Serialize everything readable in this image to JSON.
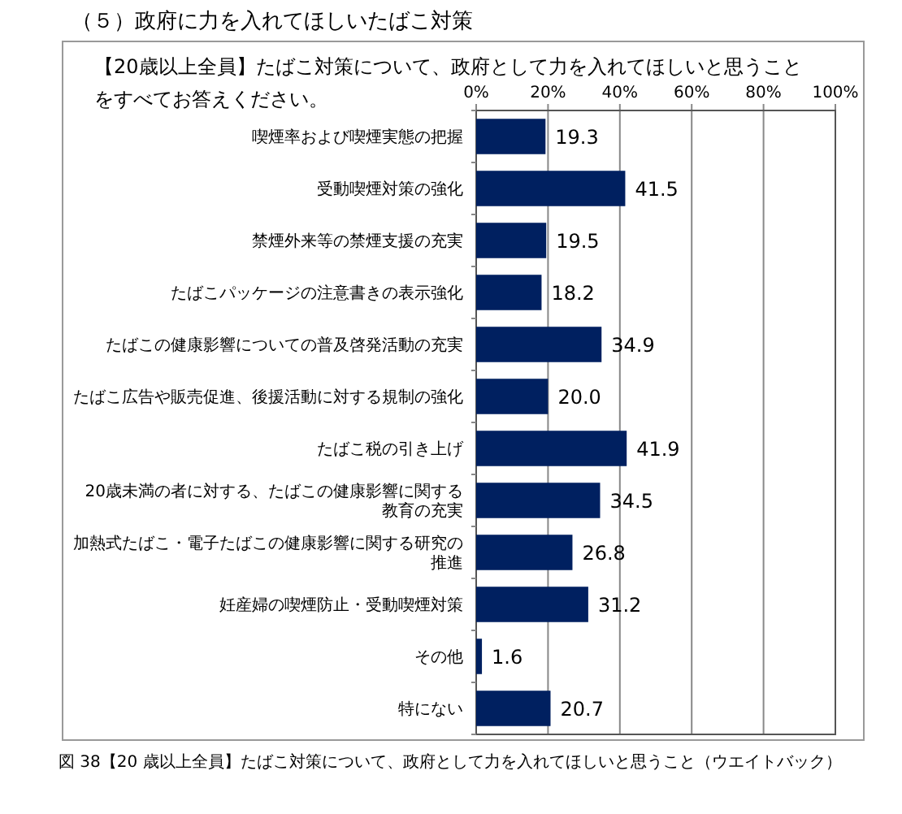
{
  "chart_data": {
    "type": "bar",
    "orientation": "horizontal",
    "title": "（５）政府に力を入れてほしいたばこ対策",
    "subtitle": "【20歳以上全員】たばこ対策について、政府として力を入れてほしいと思うことをすべてお答えください。",
    "annotations": [
      "図 38【20 歳以上全員】たばこ対策について、政府として力を入れてほしいと思うこと（ウエイトバック）"
    ],
    "categories": [
      "喫煙率および喫煙実態の把握",
      "受動喫煙対策の強化",
      "禁煙外来等の禁煙支援の充実",
      "たばこパッケージの注意書きの表示強化",
      "たばこの健康影響についての普及啓発活動の充実",
      "たばこ広告や販売促進、後援活動に対する規制の強化",
      "たばこ税の引き上げ",
      "20歳未満の者に対する、たばこの健康影響に関する教育の充実",
      "加熱式たばこ・電子たばこの健康影響に関する研究の推進",
      "妊産婦の喫煙防止・受動喫煙対策",
      "その他",
      "特にない"
    ],
    "values": [
      19.3,
      41.5,
      19.5,
      18.2,
      34.9,
      20.0,
      41.9,
      34.5,
      26.8,
      31.2,
      1.6,
      20.7
    ],
    "value_labels": [
      "19.3",
      "41.5",
      "19.5",
      "18.2",
      "34.9",
      "20.0",
      "41.9",
      "34.5",
      "26.8",
      "31.2",
      "1.6",
      "20.7"
    ],
    "color": "#002060",
    "xlim": [
      0,
      100
    ],
    "xticks": [
      {
        "value": 0,
        "label": "0%"
      },
      {
        "value": 20,
        "label": "20%"
      },
      {
        "value": 40,
        "label": "40%"
      },
      {
        "value": 60,
        "label": "60%"
      },
      {
        "value": 80,
        "label": "80%"
      },
      {
        "value": 100,
        "label": "100%"
      }
    ],
    "grid": "x"
  }
}
